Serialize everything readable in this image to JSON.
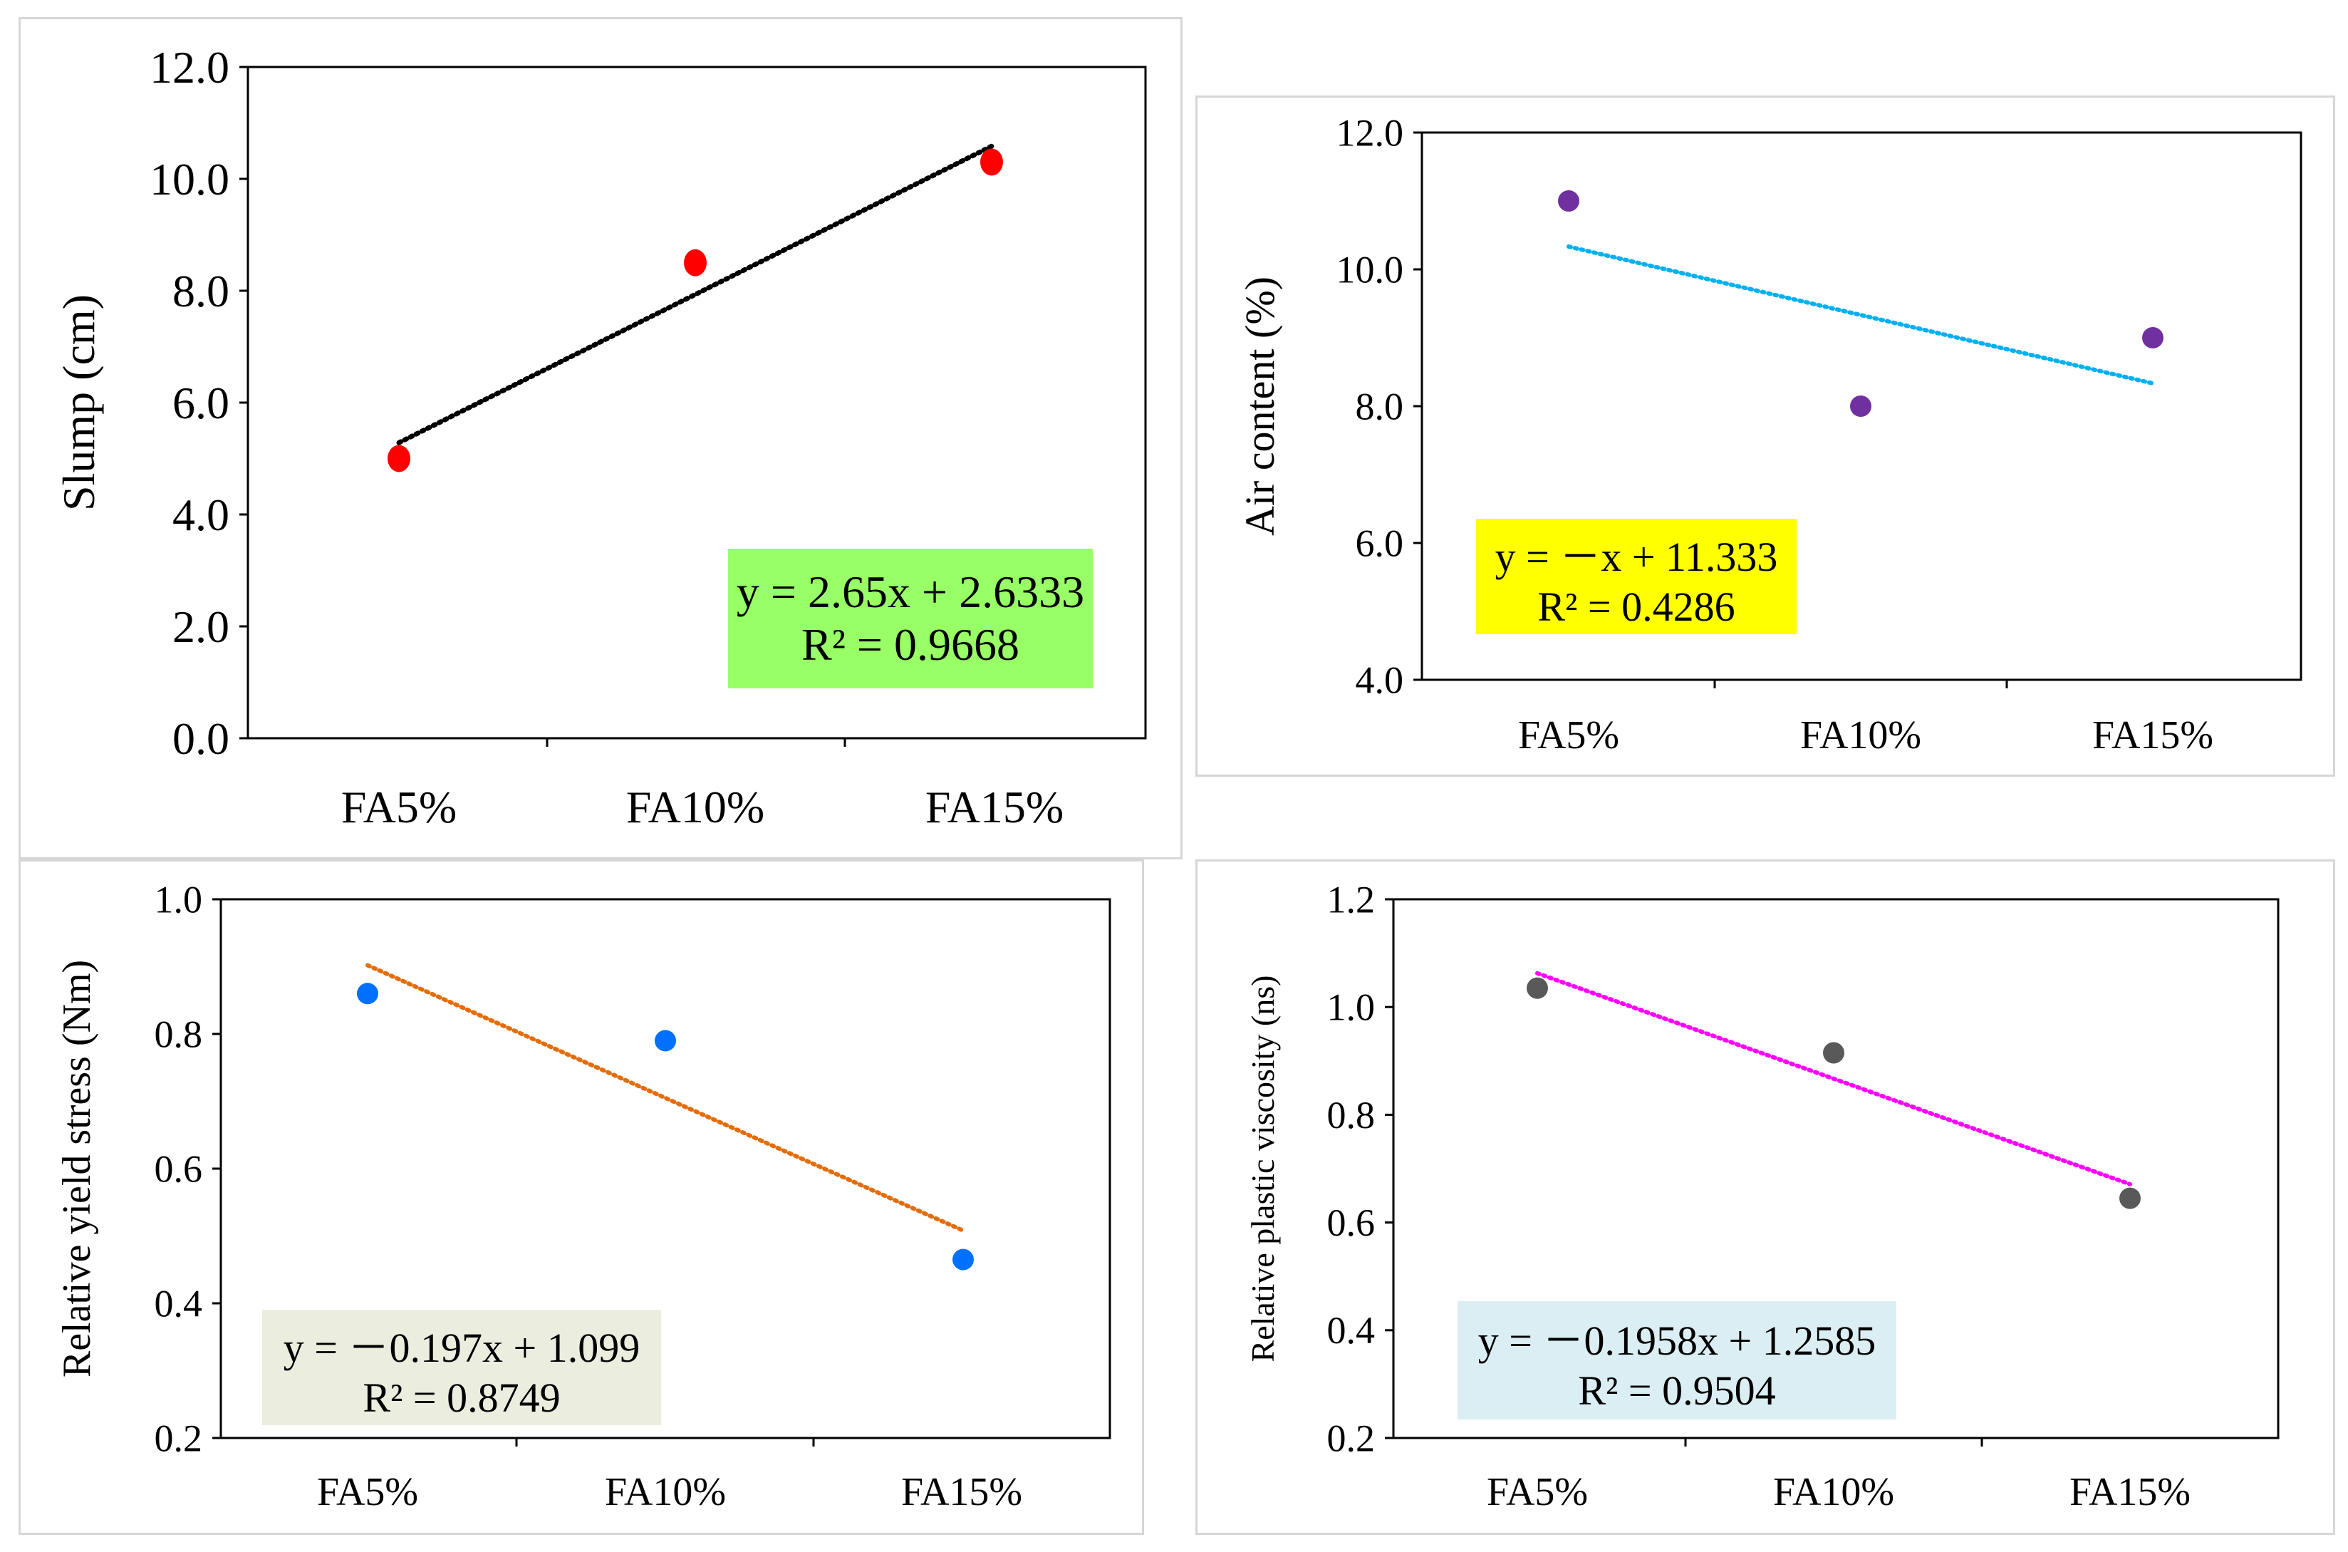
{
  "chart_data": [
    {
      "type": "scatter",
      "title": "",
      "categories": [
        "FA5%",
        "FA10%",
        "FA15%"
      ],
      "x": [
        1,
        2,
        3
      ],
      "values": [
        5.0,
        8.5,
        10.3
      ],
      "ylabel": "Slump (cm)",
      "xlabel": "",
      "ylim": [
        0.0,
        12.0
      ],
      "yticks": [
        "0.0",
        "2.0",
        "4.0",
        "6.0",
        "8.0",
        "10.0",
        "12.0"
      ],
      "point_color": "#ff0000",
      "trendline": {
        "slope": 2.65,
        "intercept": 2.6333,
        "color": "#000000"
      },
      "equation": "y = 2.65x + 2.6333",
      "r2": "R² = 0.9668",
      "eq_bg": "#99ff66"
    },
    {
      "type": "scatter",
      "title": "",
      "categories": [
        "FA5%",
        "FA10%",
        "FA15%"
      ],
      "x": [
        1,
        2,
        3
      ],
      "values": [
        11.0,
        8.0,
        9.0
      ],
      "ylabel": "Air content (%)",
      "xlabel": "",
      "ylim": [
        4.0,
        12.0
      ],
      "yticks": [
        "4.0",
        "6.0",
        "8.0",
        "10.0",
        "12.0"
      ],
      "point_color": "#7030a0",
      "trendline": {
        "slope": -1,
        "intercept": 11.333,
        "color": "#00b0f0"
      },
      "equation": "y = －x + 11.333",
      "r2": "R² = 0.4286",
      "eq_bg": "#ffff00"
    },
    {
      "type": "scatter",
      "title": "",
      "categories": [
        "FA5%",
        "FA10%",
        "FA15%"
      ],
      "x": [
        1,
        2,
        3
      ],
      "values": [
        0.86,
        0.79,
        0.465
      ],
      "ylabel": "Relative yield stress (Nm)",
      "xlabel": "",
      "ylim": [
        0.2,
        1.0
      ],
      "yticks": [
        "0.2",
        "0.4",
        "0.6",
        "0.8",
        "1.0"
      ],
      "point_color": "#0070ff",
      "trendline": {
        "slope": -0.197,
        "intercept": 1.099,
        "color": "#e46c0a"
      },
      "equation": "y = －0.197x + 1.099",
      "r2": "R² = 0.8749",
      "eq_bg": "#ebeddf"
    },
    {
      "type": "scatter",
      "title": "",
      "categories": [
        "FA5%",
        "FA10%",
        "FA15%"
      ],
      "x": [
        1,
        2,
        3
      ],
      "values": [
        1.035,
        0.915,
        0.645
      ],
      "ylabel": "Relative plastic viscosity (ns)",
      "xlabel": "",
      "ylim": [
        0.2,
        1.2
      ],
      "yticks": [
        "0.2",
        "0.4",
        "0.6",
        "0.8",
        "1.0",
        "1.2"
      ],
      "point_color": "#595959",
      "trendline": {
        "slope": -0.1958,
        "intercept": 1.2585,
        "color": "#ff00ff"
      },
      "equation": "y = －0.1958x + 1.2585",
      "r2": "R² = 0.9504",
      "eq_bg": "#daeef3"
    }
  ]
}
